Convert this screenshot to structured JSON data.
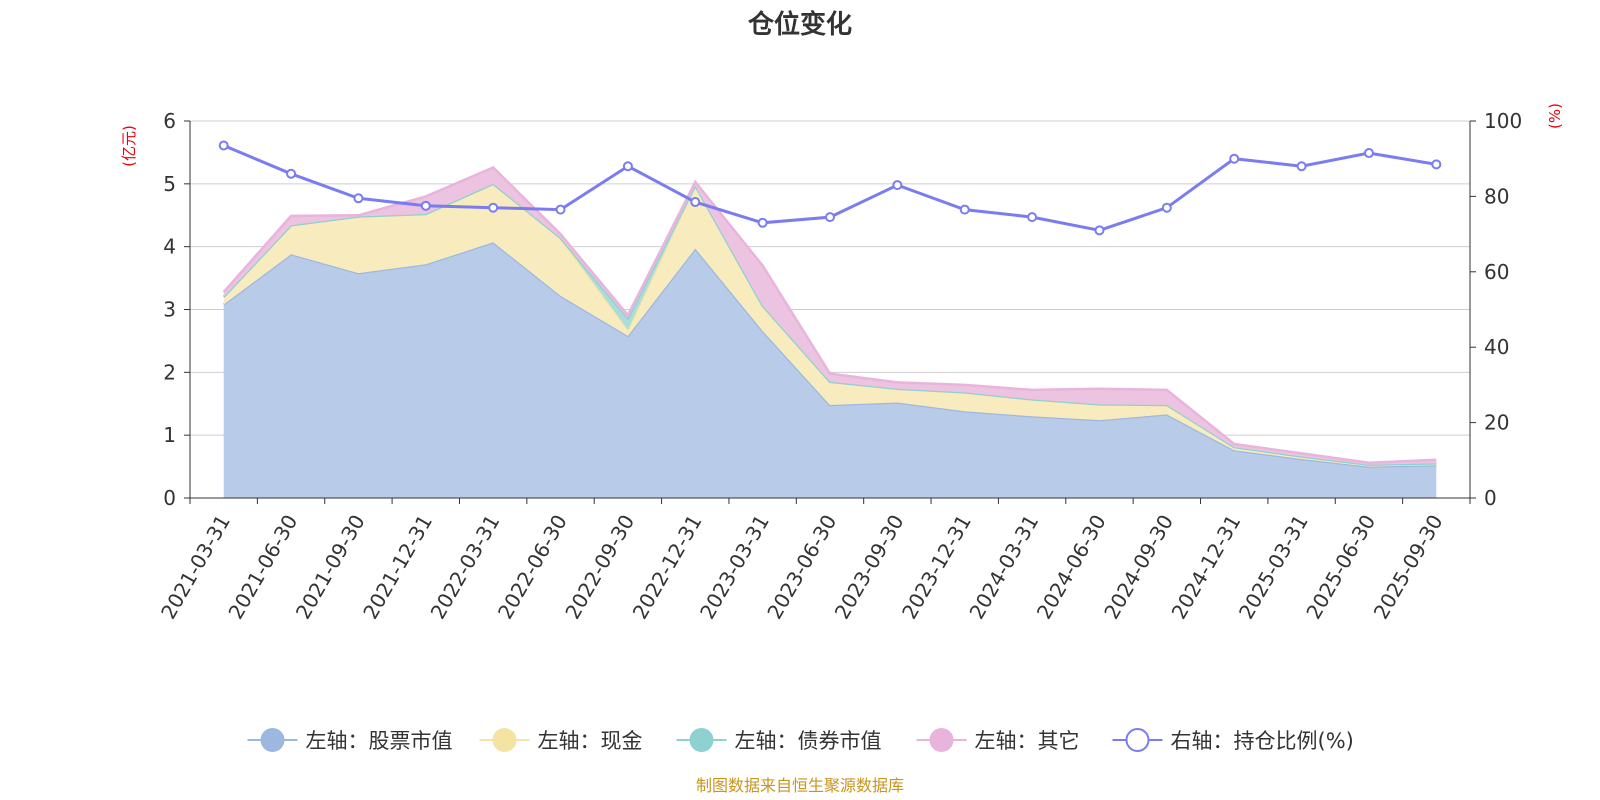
{
  "chart_data": {
    "type": "area",
    "title": "仓位变化",
    "left_axis_unit": "(亿元)",
    "right_axis_unit": "(%)",
    "categories": [
      "2021-03-31",
      "2021-06-30",
      "2021-09-30",
      "2021-12-31",
      "2022-03-31",
      "2022-06-30",
      "2022-09-30",
      "2022-12-31",
      "2023-03-31",
      "2023-06-30",
      "2023-09-30",
      "2023-12-31",
      "2024-03-31",
      "2024-06-30",
      "2024-09-30",
      "2024-12-31",
      "2025-03-31",
      "2025-06-30",
      "2025-09-30"
    ],
    "left_ylim": [
      0,
      6
    ],
    "left_ticks": [
      "0",
      "1",
      "2",
      "3",
      "4",
      "5",
      "6"
    ],
    "right_ylim": [
      0,
      100
    ],
    "right_ticks": [
      "0",
      "20",
      "40",
      "60",
      "80",
      "100"
    ],
    "stacked_series": [
      {
        "name": "左轴：股票市值",
        "color": "#9db8e0",
        "fill": "#b8cbe8",
        "values": [
          3.08,
          3.88,
          3.58,
          3.72,
          4.07,
          3.22,
          2.58,
          3.97,
          2.66,
          1.48,
          1.52,
          1.38,
          1.3,
          1.24,
          1.33,
          0.76,
          0.62,
          0.5,
          0.52
        ]
      },
      {
        "name": "左轴：现金",
        "color": "#f5e3a3",
        "fill": "#f8ecbf",
        "values": [
          0.12,
          0.46,
          0.9,
          0.8,
          0.93,
          0.92,
          0.1,
          1.0,
          0.4,
          0.37,
          0.22,
          0.3,
          0.27,
          0.25,
          0.15,
          0.05,
          0.04,
          0.03,
          0.03
        ]
      },
      {
        "name": "左轴：债券市值",
        "color": "#8fd1d0",
        "fill": "#a9dcdb",
        "values": [
          0,
          0,
          0,
          0,
          0,
          0,
          0.18,
          0,
          0,
          0,
          0,
          0,
          0,
          0,
          0,
          0,
          0,
          0,
          0
        ]
      },
      {
        "name": "左轴：其它",
        "color": "#e9b4dc",
        "fill": "#ecc3e0",
        "values": [
          0.08,
          0.15,
          0.02,
          0.28,
          0.26,
          0.06,
          0.05,
          0.06,
          0.64,
          0.13,
          0.1,
          0.12,
          0.15,
          0.25,
          0.24,
          0.05,
          0.05,
          0.03,
          0.06
        ]
      }
    ],
    "line_series": {
      "name": "右轴：持仓比例(%)",
      "color": "#7b7cf0",
      "values": [
        93.5,
        86,
        79.5,
        77.5,
        77,
        76.5,
        88,
        78.5,
        73,
        74.5,
        83,
        76.5,
        74.5,
        71,
        77,
        90,
        88,
        91.5,
        88.5
      ]
    },
    "source_note": "制图数据来自恒生聚源数据库"
  }
}
